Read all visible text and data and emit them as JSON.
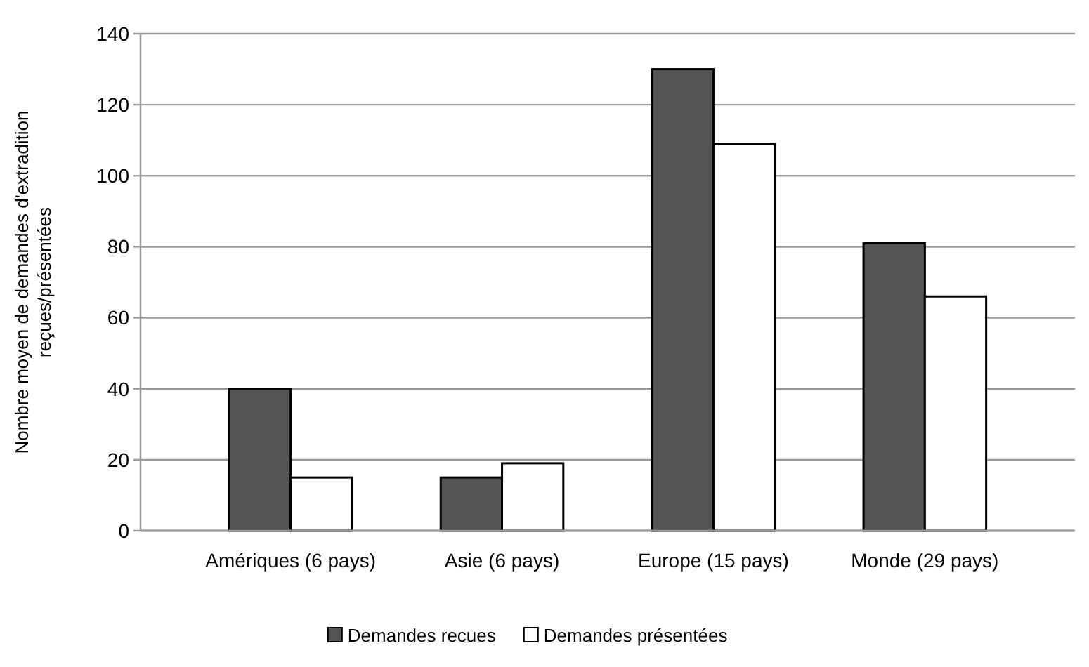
{
  "chart_data": {
    "type": "bar",
    "ylabel": "Nombre moyen  de demandes d'extradition\nreçues/présentées",
    "categories": [
      "Amériques (6 pays)",
      "Asie (6 pays)",
      "Europe (15 pays)",
      "Monde (29 pays)"
    ],
    "series": [
      {
        "name": "Demandes recues",
        "color": "#555555",
        "values": [
          40,
          15,
          130,
          81
        ]
      },
      {
        "name": "Demandes présentées",
        "color": "#ffffff",
        "values": [
          15,
          19,
          109,
          66
        ]
      }
    ],
    "ylim": [
      0,
      140
    ],
    "yticks": [
      0,
      20,
      40,
      60,
      80,
      100,
      120,
      140
    ],
    "grid": "y",
    "legend": "bottom"
  }
}
